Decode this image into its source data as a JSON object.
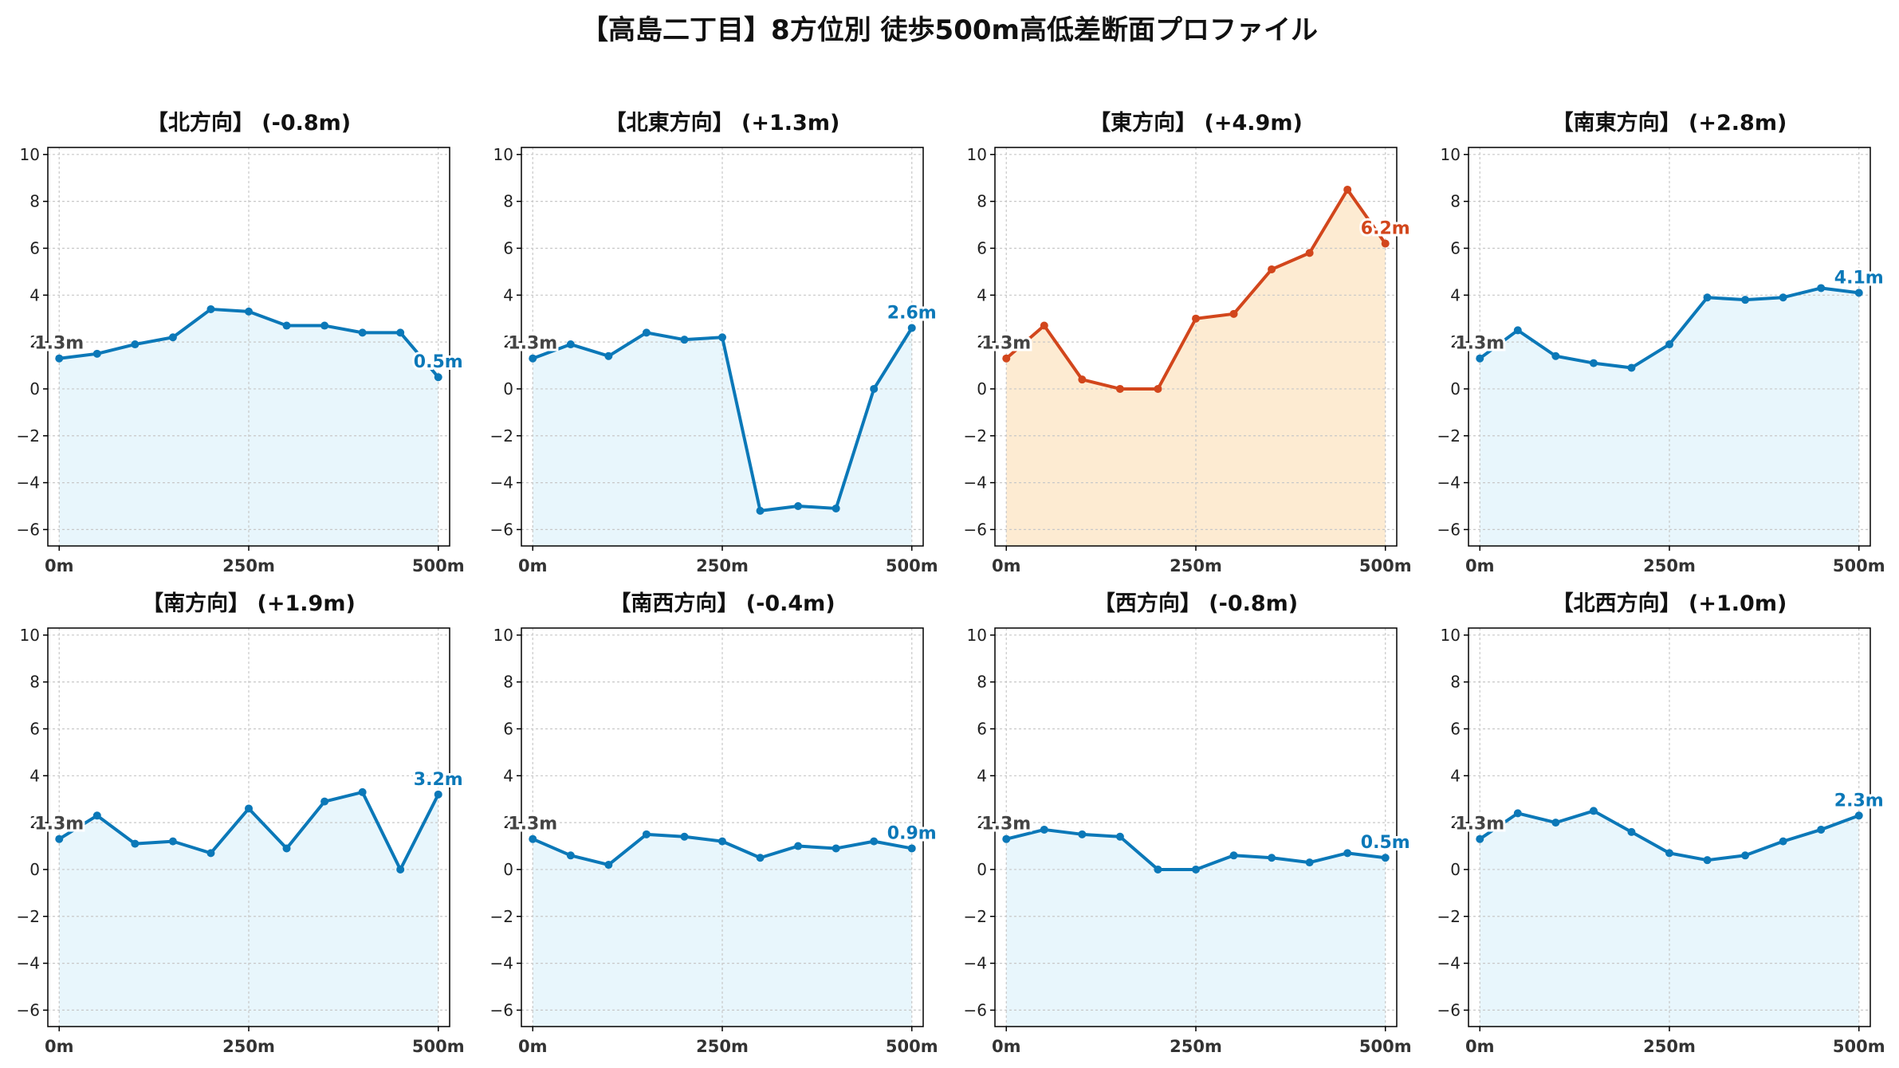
{
  "figure": {
    "title": "【高島二丁目】8方位別 徒歩500m高低差断面プロファイル"
  },
  "colors": {
    "normal_line": "#0b78b8",
    "normal_fill": "#e8f6fc",
    "highlight_line": "#d2461c",
    "highlight_fill": "#fdebd2",
    "grid": "#c8c8c8",
    "axis": "#000000"
  },
  "chart_data": [
    {
      "type": "area",
      "title": "【北方向】 (-0.8m)",
      "x_tick_labels": [
        "0m",
        "250m",
        "500m"
      ],
      "x": [
        0,
        50,
        100,
        150,
        200,
        250,
        300,
        350,
        400,
        450,
        500
      ],
      "y": [
        1.3,
        1.5,
        1.9,
        2.2,
        3.4,
        3.3,
        2.7,
        2.7,
        2.4,
        2.4,
        0.5
      ],
      "start_label": "1.3m",
      "end_label": "0.5m",
      "highlight": false,
      "xlim": [
        -15,
        515
      ],
      "ylim": [
        -6.7,
        10.3
      ],
      "y_ticks": [
        -6,
        -4,
        -2,
        0,
        2,
        4,
        6,
        8,
        10
      ],
      "grid": true
    },
    {
      "type": "area",
      "title": "【北東方向】 (+1.3m)",
      "x_tick_labels": [
        "0m",
        "250m",
        "500m"
      ],
      "x": [
        0,
        50,
        100,
        150,
        200,
        250,
        300,
        350,
        400,
        450,
        500
      ],
      "y": [
        1.3,
        1.9,
        1.4,
        2.4,
        2.1,
        2.2,
        -5.2,
        -5.0,
        -5.1,
        0.0,
        2.6
      ],
      "start_label": "1.3m",
      "end_label": "2.6m",
      "highlight": false,
      "xlim": [
        -15,
        515
      ],
      "ylim": [
        -6.7,
        10.3
      ],
      "y_ticks": [
        -6,
        -4,
        -2,
        0,
        2,
        4,
        6,
        8,
        10
      ],
      "grid": true
    },
    {
      "type": "area",
      "title": "【東方向】 (+4.9m)",
      "x_tick_labels": [
        "0m",
        "250m",
        "500m"
      ],
      "x": [
        0,
        50,
        100,
        150,
        200,
        250,
        300,
        350,
        400,
        450,
        500
      ],
      "y": [
        1.3,
        2.7,
        0.4,
        0.0,
        0.0,
        3.0,
        3.2,
        5.1,
        5.8,
        8.5,
        6.2
      ],
      "start_label": "1.3m",
      "end_label": "6.2m",
      "highlight": true,
      "xlim": [
        -15,
        515
      ],
      "ylim": [
        -6.7,
        10.3
      ],
      "y_ticks": [
        -6,
        -4,
        -2,
        0,
        2,
        4,
        6,
        8,
        10
      ],
      "grid": true
    },
    {
      "type": "area",
      "title": "【南東方向】 (+2.8m)",
      "x_tick_labels": [
        "0m",
        "250m",
        "500m"
      ],
      "x": [
        0,
        50,
        100,
        150,
        200,
        250,
        300,
        350,
        400,
        450,
        500
      ],
      "y": [
        1.3,
        2.5,
        1.4,
        1.1,
        0.9,
        1.9,
        3.9,
        3.8,
        3.9,
        4.3,
        4.1
      ],
      "start_label": "1.3m",
      "end_label": "4.1m",
      "highlight": false,
      "xlim": [
        -15,
        515
      ],
      "ylim": [
        -6.7,
        10.3
      ],
      "y_ticks": [
        -6,
        -4,
        -2,
        0,
        2,
        4,
        6,
        8,
        10
      ],
      "grid": true
    },
    {
      "type": "area",
      "title": "【南方向】 (+1.9m)",
      "x_tick_labels": [
        "0m",
        "250m",
        "500m"
      ],
      "x": [
        0,
        50,
        100,
        150,
        200,
        250,
        300,
        350,
        400,
        450,
        500
      ],
      "y": [
        1.3,
        2.3,
        1.1,
        1.2,
        0.7,
        2.6,
        0.9,
        2.9,
        3.3,
        0.0,
        3.2
      ],
      "start_label": "1.3m",
      "end_label": "3.2m",
      "highlight": false,
      "xlim": [
        -15,
        515
      ],
      "ylim": [
        -6.7,
        10.3
      ],
      "y_ticks": [
        -6,
        -4,
        -2,
        0,
        2,
        4,
        6,
        8,
        10
      ],
      "grid": true
    },
    {
      "type": "area",
      "title": "【南西方向】 (-0.4m)",
      "x_tick_labels": [
        "0m",
        "250m",
        "500m"
      ],
      "x": [
        0,
        50,
        100,
        150,
        200,
        250,
        300,
        350,
        400,
        450,
        500
      ],
      "y": [
        1.3,
        0.6,
        0.2,
        1.5,
        1.4,
        1.2,
        0.5,
        1.0,
        0.9,
        1.2,
        0.9
      ],
      "start_label": "1.3m",
      "end_label": "0.9m",
      "highlight": false,
      "xlim": [
        -15,
        515
      ],
      "ylim": [
        -6.7,
        10.3
      ],
      "y_ticks": [
        -6,
        -4,
        -2,
        0,
        2,
        4,
        6,
        8,
        10
      ],
      "grid": true
    },
    {
      "type": "area",
      "title": "【西方向】 (-0.8m)",
      "x_tick_labels": [
        "0m",
        "250m",
        "500m"
      ],
      "x": [
        0,
        50,
        100,
        150,
        200,
        250,
        300,
        350,
        400,
        450,
        500
      ],
      "y": [
        1.3,
        1.7,
        1.5,
        1.4,
        0.0,
        0.0,
        0.6,
        0.5,
        0.3,
        0.7,
        0.5
      ],
      "start_label": "1.3m",
      "end_label": "0.5m",
      "highlight": false,
      "xlim": [
        -15,
        515
      ],
      "ylim": [
        -6.7,
        10.3
      ],
      "y_ticks": [
        -6,
        -4,
        -2,
        0,
        2,
        4,
        6,
        8,
        10
      ],
      "grid": true
    },
    {
      "type": "area",
      "title": "【北西方向】 (+1.0m)",
      "x_tick_labels": [
        "0m",
        "250m",
        "500m"
      ],
      "x": [
        0,
        50,
        100,
        150,
        200,
        250,
        300,
        350,
        400,
        450,
        500
      ],
      "y": [
        1.3,
        2.4,
        2.0,
        2.5,
        1.6,
        0.7,
        0.4,
        0.6,
        1.2,
        1.7,
        2.3
      ],
      "start_label": "1.3m",
      "end_label": "2.3m",
      "highlight": false,
      "xlim": [
        -15,
        515
      ],
      "ylim": [
        -6.7,
        10.3
      ],
      "y_ticks": [
        -6,
        -4,
        -2,
        0,
        2,
        4,
        6,
        8,
        10
      ],
      "grid": true
    }
  ]
}
